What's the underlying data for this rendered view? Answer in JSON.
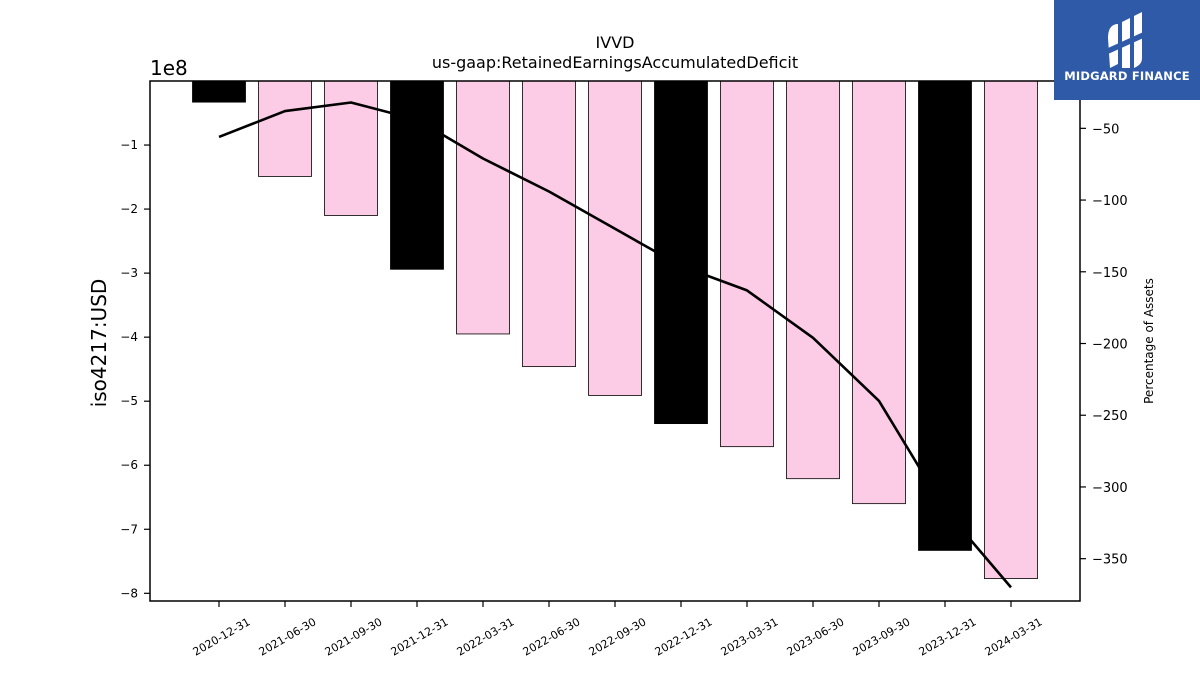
{
  "brand": {
    "name": "MIDGARD FINANCE",
    "bg_color": "#2e5aa8"
  },
  "chart_data": {
    "type": "bar",
    "title": "IVVD",
    "subtitle": "us-gaap:RetainedEarningsAccumulatedDeficit",
    "ylabel": "iso4217:USD",
    "y_scale_label": "1e8",
    "y2label": "Percentage of Assets",
    "categories": [
      "2020-12-31",
      "2021-06-30",
      "2021-09-30",
      "2021-12-31",
      "2022-03-31",
      "2022-06-30",
      "2022-09-30",
      "2022-12-31",
      "2023-03-31",
      "2023-06-30",
      "2023-09-30",
      "2023-12-31",
      "2024-03-31"
    ],
    "series": [
      {
        "type": "bar",
        "axis": "left",
        "values": [
          -33000000,
          -149000000,
          -210000000,
          -294000000,
          -395000000,
          -446000000,
          -491000000,
          -535000000,
          -571000000,
          -621000000,
          -660000000,
          -733000000,
          -777000000
        ],
        "colors": [
          "#000000",
          "#fccbe6",
          "#fccbe6",
          "#000000",
          "#fccbe6",
          "#fccbe6",
          "#fccbe6",
          "#000000",
          "#fccbe6",
          "#fccbe6",
          "#fccbe6",
          "#000000",
          "#fccbe6"
        ]
      },
      {
        "type": "line",
        "axis": "right",
        "color": "#000000",
        "values": [
          -56,
          -38,
          -32,
          -44,
          -71,
          -94,
          -120,
          -146,
          -163,
          -196,
          -240,
          -316,
          -370
        ]
      }
    ],
    "ylim": [
      -812000000,
      0
    ],
    "yticks": [
      -100000000,
      -200000000,
      -300000000,
      -400000000,
      -500000000,
      -600000000,
      -700000000,
      -800000000
    ],
    "ytick_labels": [
      "−1",
      "−2",
      "−3",
      "−4",
      "−5",
      "−6",
      "−7",
      "−8"
    ],
    "y2lim": [
      -379.5,
      -17
    ],
    "y2ticks": [
      -50,
      -100,
      -150,
      -200,
      -250,
      -300,
      -350
    ],
    "y2tick_labels": [
      "−50",
      "−100",
      "−150",
      "−200",
      "−250",
      "−300",
      "−350"
    ],
    "grid": false
  }
}
